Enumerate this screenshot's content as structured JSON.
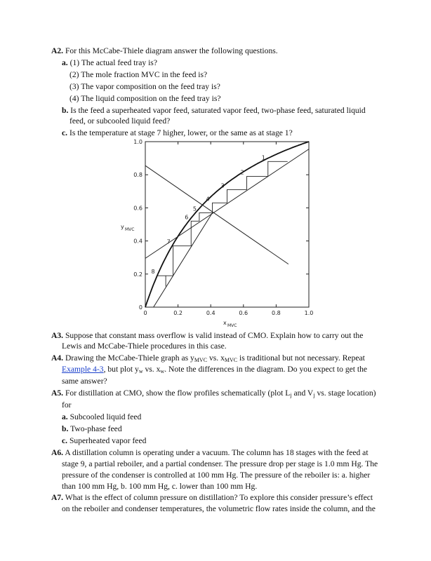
{
  "a2": {
    "num": "A2.",
    "text": "For this McCabe-Thiele diagram answer the following questions.",
    "a_label": "a.",
    "a1": "(1) The actual feed tray is?",
    "a2": "(2) The mole fraction MVC in the feed is?",
    "a3": "(3) The vapor composition on the feed tray is?",
    "a4": "(4) The liquid composition on the feed tray is?",
    "b_label": "b.",
    "b_line1": "Is the feed a superheated vapor feed, saturated vapor feed, two-phase feed, saturated liquid",
    "b_line2": "feed, or subcooled liquid feed?",
    "c_label": "c.",
    "c_text": "Is the temperature at stage 7 higher, lower, or the same as at stage 1?"
  },
  "chart_data": {
    "type": "line",
    "xlabel": "x",
    "xlabel_sub": "MVC",
    "ylabel": "y",
    "ylabel_sub": "MVC",
    "xlim": [
      0,
      1
    ],
    "ylim": [
      0,
      1
    ],
    "xticks": [
      "0",
      "0.2",
      "0.4",
      "0.6",
      "0.8",
      "1.0"
    ],
    "yticks": [
      "0",
      "0.2",
      "0.4",
      "0.6",
      "0.8",
      "1.0"
    ],
    "equilibrium_relative_volatility": 3.0,
    "rectifying_line": [
      [
        0,
        0.295
      ],
      [
        1.0,
        0.955
      ]
    ],
    "stripping_line": [
      [
        0.05,
        0
      ],
      [
        0.41,
        0.57
      ]
    ],
    "feed_line": [
      [
        0,
        0.855
      ],
      [
        0.875,
        0.26
      ]
    ],
    "staircase": [
      [
        0.87,
        0.88
      ],
      [
        0.75,
        0.88
      ],
      [
        0.75,
        0.79
      ],
      [
        0.62,
        0.79
      ],
      [
        0.62,
        0.71
      ],
      [
        0.5,
        0.71
      ],
      [
        0.5,
        0.63
      ],
      [
        0.41,
        0.63
      ],
      [
        0.41,
        0.57
      ],
      [
        0.33,
        0.57
      ],
      [
        0.33,
        0.52
      ],
      [
        0.28,
        0.52
      ],
      [
        0.28,
        0.37
      ],
      [
        0.17,
        0.37
      ],
      [
        0.17,
        0.19
      ],
      [
        0.075,
        0.19
      ]
    ],
    "partial_step": [
      [
        0.125,
        0.19
      ],
      [
        0.125,
        0.125
      ]
    ],
    "stage_labels": [
      {
        "t": "1",
        "x": 0.75,
        "y": 0.88
      },
      {
        "t": "2",
        "x": 0.62,
        "y": 0.79
      },
      {
        "t": "3",
        "x": 0.5,
        "y": 0.71
      },
      {
        "t": "4",
        "x": 0.41,
        "y": 0.63
      },
      {
        "t": "5",
        "x": 0.33,
        "y": 0.57
      },
      {
        "t": "6",
        "x": 0.28,
        "y": 0.52
      },
      {
        "t": "7",
        "x": 0.17,
        "y": 0.37
      },
      {
        "t": "8",
        "x": 0.075,
        "y": 0.19
      }
    ]
  },
  "a3": {
    "num": "A3.",
    "line1": "Suppose that constant mass overflow is valid instead of CMO. Explain how to carry out the",
    "line2": "Lewis and McCabe-Thiele procedures in this case."
  },
  "a4": {
    "num": "A4.",
    "t1": "Drawing the McCabe-Thiele graph as ",
    "y": "y",
    "mvc": "MVC",
    "vs": " vs. ",
    "x": "x",
    "t2": " is traditional but not necessary. Repeat",
    "link": "Example 4-3",
    "t3": ", but plot y",
    "w": "w",
    "t4": " vs. x",
    "t5": ". Note the differences in the diagram. Do you expect to get the",
    "line3": "same answer?"
  },
  "a5": {
    "num": "A5.",
    "t1": "For distillation at CMO, show the flow profiles schematically (plot L",
    "j": "j",
    "t2": " and V",
    "t3": " vs. stage location)",
    "line2": "for",
    "a_label": "a.",
    "a": "Subcooled liquid feed",
    "b_label": "b.",
    "b": "Two-phase feed",
    "c_label": "c.",
    "c": "Superheated vapor feed"
  },
  "a6": {
    "num": "A6.",
    "line1": "A distillation column is operating under a vacuum. The column has 18 stages with the feed at",
    "line2": "stage 9, a partial reboiler, and a partial condenser. The pressure drop per stage is 1.0 mm Hg. The",
    "line3": "pressure of the condenser is controlled at 100 mm Hg. The pressure of the reboiler is: a. higher",
    "line4": "than 100 mm Hg, b. 100 mm Hg, c. lower than 100 mm Hg."
  },
  "a7": {
    "num": "A7.",
    "line1": "What is the effect of column pressure on distillation? To explore this consider pressure’s effect",
    "line2": "on the reboiler and condenser temperatures, the volumetric flow rates inside the column, and the"
  }
}
